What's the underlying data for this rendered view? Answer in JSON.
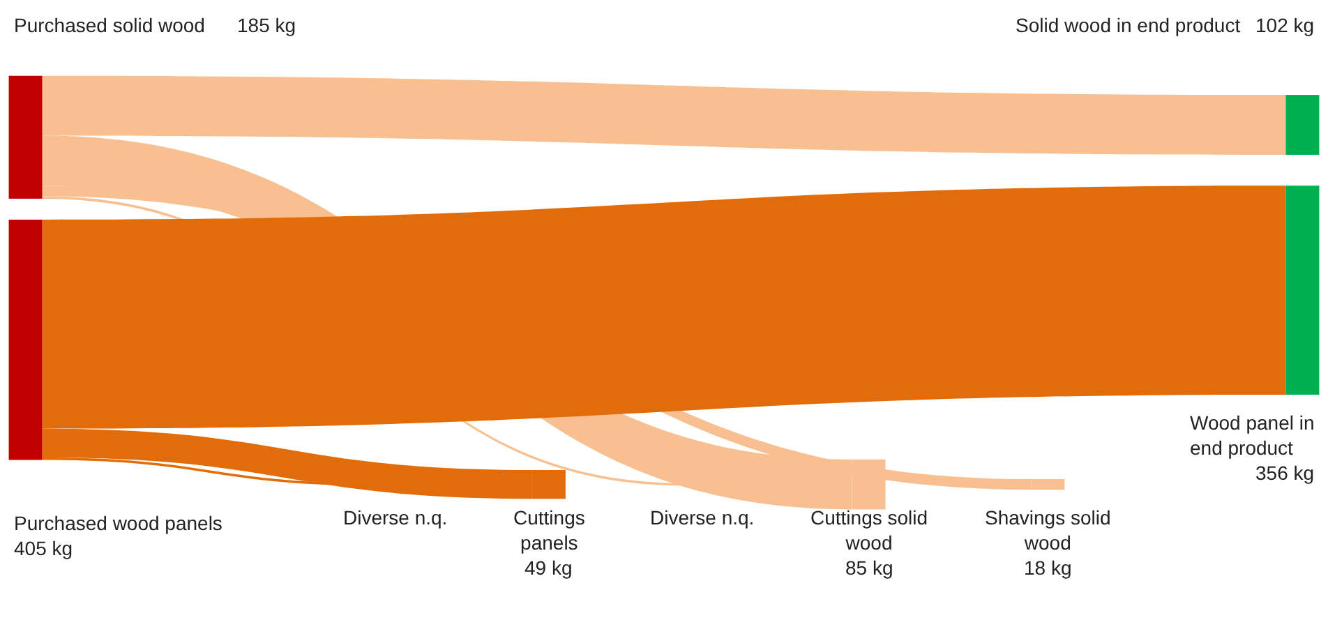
{
  "chart_data": {
    "type": "other",
    "categories": [
      "Purchased solid wood",
      "Purchased wood panels",
      "Solid wood in end product",
      "Wood panel in end product",
      "Diverse n.q.",
      "Cuttings panels",
      "Diverse n.q.",
      "Cuttings solid wood",
      "Shavings solid wood"
    ],
    "values": [
      185,
      405,
      null,
      null,
      null,
      null,
      null,
      null,
      null
    ],
    "value_labels": [
      "185 kg",
      "405 kg",
      null,
      null,
      null,
      null,
      null,
      null,
      null
    ],
    "colors": [
      "#c00000",
      "#c00000",
      "#00b050",
      "#00b050",
      "#e36c0a",
      "#e36c0a",
      "#f8c090",
      "#f8c090",
      "#f8c090"
    ],
    "series": [
      {
        "color": "#f8c090",
        "values": [
          null,
          null,
          102,
          null,
          null,
          null,
          null,
          85,
          18
        ],
        "value_labels": [
          null,
          null,
          "102 kg",
          null,
          null,
          null,
          null,
          "85 kg",
          "18 kg"
        ]
      },
      {
        "color": "#e36c0a",
        "values": [
          null,
          null,
          null,
          356,
          null,
          49,
          null,
          null,
          null
        ],
        "value_labels": [
          null,
          null,
          null,
          "356 kg",
          null,
          "49 kg",
          null,
          null,
          null
        ]
      }
    ]
  }
}
